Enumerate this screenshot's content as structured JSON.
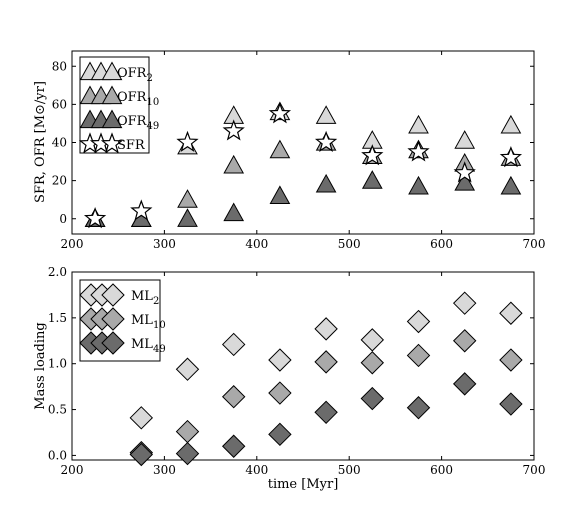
{
  "colors": {
    "light": "#d9d9d9",
    "mid": "#a9a9a9",
    "dark": "#6b6b6b",
    "star": "#ffffff"
  },
  "chart_data": [
    {
      "type": "scatter",
      "ylabel": "SFR, OFR [M⊙/yr]",
      "xlim": [
        200,
        700
      ],
      "ylim": [
        -8,
        88
      ],
      "xticks": [
        "200",
        "300",
        "400",
        "500",
        "600",
        "700"
      ],
      "yticks": [
        "0",
        "20",
        "40",
        "60",
        "80"
      ],
      "legend_position": "top-left",
      "series": [
        {
          "name": "OFR2",
          "name_main": "OFR",
          "name_sub": "2",
          "marker": "triangle",
          "color": "light",
          "x": [
            225,
            275,
            325,
            375,
            425,
            475,
            525,
            575,
            625,
            675
          ],
          "y": [
            0,
            0,
            38,
            54,
            56,
            54,
            41,
            49,
            41,
            49
          ]
        },
        {
          "name": "OFR10",
          "name_main": "OFR",
          "name_sub": "10",
          "marker": "triangle",
          "color": "mid",
          "x": [
            225,
            275,
            325,
            375,
            425,
            475,
            525,
            575,
            625,
            675
          ],
          "y": [
            0,
            0,
            10,
            28,
            36,
            40,
            33,
            36,
            29,
            32
          ]
        },
        {
          "name": "OFR49",
          "name_main": "OFR",
          "name_sub": "49",
          "marker": "triangle",
          "color": "dark",
          "x": [
            225,
            275,
            325,
            375,
            425,
            475,
            525,
            575,
            625,
            675
          ],
          "y": [
            0,
            0,
            0,
            3,
            12,
            18,
            20,
            17,
            19,
            17
          ]
        },
        {
          "name": "SFR",
          "name_main": "SFR",
          "name_sub": "",
          "marker": "star",
          "color": "star",
          "x": [
            225,
            275,
            325,
            375,
            425,
            475,
            525,
            575,
            625,
            675
          ],
          "y": [
            0,
            4,
            40,
            46,
            55,
            40,
            33,
            35,
            24,
            32
          ]
        }
      ]
    },
    {
      "type": "scatter",
      "xlabel": "time [Myr]",
      "ylabel": "Mass loading",
      "xlim": [
        200,
        700
      ],
      "ylim": [
        -0.05,
        2.0
      ],
      "xticks": [
        "200",
        "300",
        "400",
        "500",
        "600",
        "700"
      ],
      "yticks": [
        "0.0",
        "0.5",
        "1.0",
        "1.5",
        "2.0"
      ],
      "legend_position": "top-left",
      "series": [
        {
          "name": "ML2",
          "name_main": "ML",
          "name_sub": "2",
          "marker": "diamond",
          "color": "light",
          "x": [
            275,
            325,
            375,
            425,
            475,
            525,
            575,
            625,
            675
          ],
          "y": [
            0.41,
            0.94,
            1.21,
            1.04,
            1.38,
            1.26,
            1.46,
            1.66,
            1.55
          ]
        },
        {
          "name": "ML10",
          "name_main": "ML",
          "name_sub": "10",
          "marker": "diamond",
          "color": "mid",
          "x": [
            275,
            325,
            375,
            425,
            475,
            525,
            575,
            625,
            675
          ],
          "y": [
            0.03,
            0.26,
            0.64,
            0.68,
            1.02,
            1.01,
            1.09,
            1.25,
            1.04
          ]
        },
        {
          "name": "ML49",
          "name_main": "ML",
          "name_sub": "49",
          "marker": "diamond",
          "color": "dark",
          "x": [
            275,
            325,
            375,
            425,
            475,
            525,
            575,
            625,
            675
          ],
          "y": [
            0.01,
            0.02,
            0.1,
            0.23,
            0.47,
            0.62,
            0.52,
            0.78,
            0.56
          ]
        }
      ]
    }
  ]
}
